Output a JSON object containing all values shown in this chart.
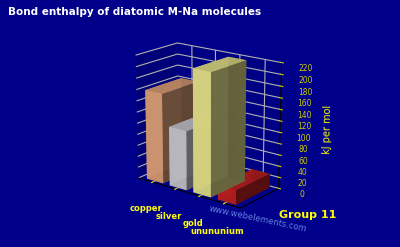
{
  "title": "Bond enthalpy of diatomic M-Na molecules",
  "ylabel": "kJ per mol",
  "xlabel": "Group 11",
  "categories": [
    "copper",
    "silver",
    "gold",
    "unununium"
  ],
  "values": [
    160,
    105,
    215,
    25
  ],
  "bar_colors": [
    "#E8A87C",
    "#D0D0D8",
    "#F0EE90",
    "#CC2222"
  ],
  "background_color": "#00008B",
  "grid_color": "#CCCC00",
  "title_color": "#FFFFFF",
  "label_color": "#FFFF00",
  "axis_color": "#CCCC00",
  "ylim": [
    0,
    220
  ],
  "yticks": [
    0,
    20,
    40,
    60,
    80,
    100,
    120,
    140,
    160,
    180,
    200,
    220
  ],
  "website": "www.webelements.com",
  "figsize": [
    4.0,
    2.47
  ],
  "dpi": 100
}
